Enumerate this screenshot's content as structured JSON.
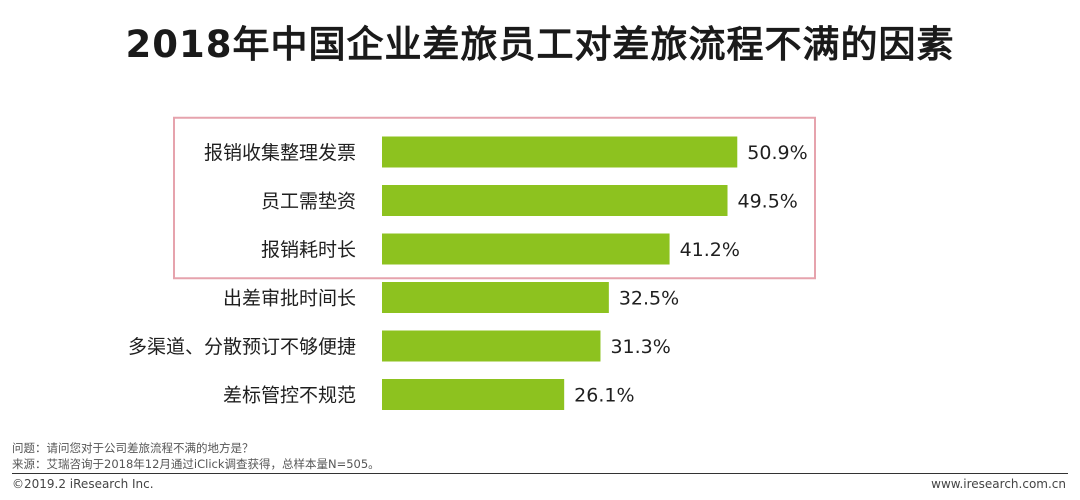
{
  "title": "2018年中国企业差旅员工对差旅流程不满的因素",
  "chart_data": {
    "type": "bar",
    "orientation": "horizontal",
    "categories": [
      "报销收集整理发票",
      "员工需垫资",
      "报销耗时长",
      "出差审批时间长",
      "多渠道、分散预订不够便捷",
      "差标管控不规范"
    ],
    "values": [
      50.9,
      49.5,
      41.2,
      32.5,
      31.3,
      26.1
    ],
    "value_labels": [
      "50.9%",
      "49.5%",
      "41.2%",
      "32.5%",
      "31.3%",
      "26.1%"
    ],
    "highlighted_top": 3,
    "xlim": [
      0,
      60
    ],
    "grid": false,
    "legend": "none",
    "bar_color": "#8dc21f",
    "highlight_color": "#e6a3ad"
  },
  "footer": {
    "question": "问题：请问您对于公司差旅流程不满的地方是？",
    "source": "来源：艾瑞咨询于2018年12月通过iClick调查获得，总样本量N=505。",
    "copyright": "©2019.2 iResearch Inc.",
    "website": "www.iresearch.com.cn"
  }
}
